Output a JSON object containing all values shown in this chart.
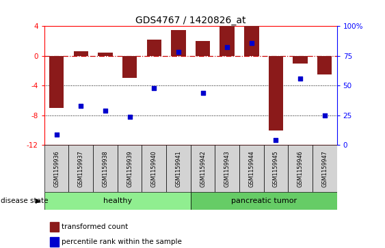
{
  "title": "GDS4767 / 1420826_at",
  "samples": [
    "GSM1159936",
    "GSM1159937",
    "GSM1159938",
    "GSM1159939",
    "GSM1159940",
    "GSM1159941",
    "GSM1159942",
    "GSM1159943",
    "GSM1159944",
    "GSM1159945",
    "GSM1159946",
    "GSM1159947"
  ],
  "red_values": [
    -7.0,
    0.6,
    0.4,
    -3.0,
    2.2,
    3.5,
    2.0,
    4.0,
    4.0,
    -10.0,
    -1.0,
    -2.5
  ],
  "blue_percentiles": [
    9,
    33,
    29,
    24,
    48,
    78,
    44,
    82,
    86,
    4,
    56,
    25
  ],
  "ylim_left": [
    -12,
    4
  ],
  "ylim_right": [
    0,
    100
  ],
  "yticks_left": [
    -12,
    -8,
    -4,
    0,
    4
  ],
  "yticks_right": [
    0,
    25,
    50,
    75,
    100
  ],
  "groups": [
    {
      "label": "healthy",
      "start": 0,
      "end": 5,
      "color": "#90EE90"
    },
    {
      "label": "pancreatic tumor",
      "start": 6,
      "end": 11,
      "color": "#66CC66"
    }
  ],
  "bar_color": "#8B1A1A",
  "dot_color": "#0000CD",
  "hline_color": "#CC0000",
  "group_label": "disease state",
  "legend_red": "transformed count",
  "legend_blue": "percentile rank within the sample"
}
